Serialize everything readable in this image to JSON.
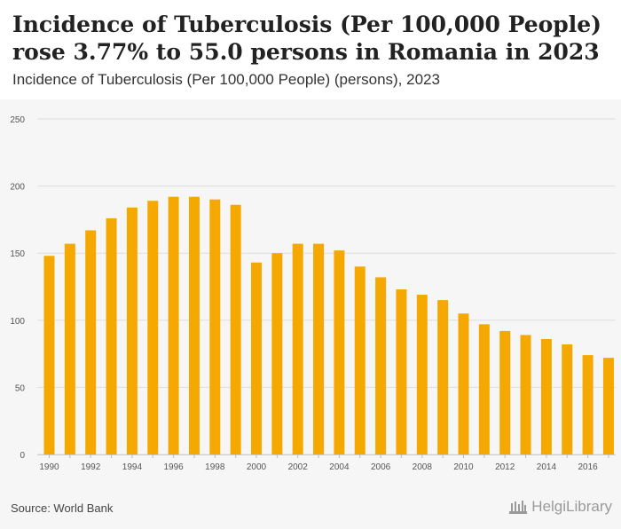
{
  "header": {
    "title": "Incidence of Tuberculosis (Per 100,000 People) rose 3.77% to 55.0 persons in Romania in 2023",
    "subtitle": "Incidence of Tuberculosis (Per 100,000 People) (persons), 2023"
  },
  "footer": {
    "source": "Source: World Bank",
    "logo_text": "HelgiLibrary"
  },
  "colors": {
    "bar": "#f5a800",
    "grid": "#dddddd",
    "background": "#f6f6f6"
  },
  "chart_data": {
    "type": "bar",
    "title": "Incidence of Tuberculosis (Per 100,000 People) rose 3.77% to 55.0 persons in Romania in 2023",
    "subtitle": "Incidence of Tuberculosis (Per 100,000 People) (persons), 2023",
    "xlabel": "",
    "ylabel": "",
    "ylim": [
      0,
      250
    ],
    "yticks": [
      0,
      50,
      100,
      150,
      200,
      250
    ],
    "grid": true,
    "legend": "none",
    "categories": [
      "1990",
      "1991",
      "1992",
      "1993",
      "1994",
      "1995",
      "1996",
      "1997",
      "1998",
      "1999",
      "2000",
      "2001",
      "2002",
      "2003",
      "2004",
      "2005",
      "2006",
      "2007",
      "2008",
      "2009",
      "2010",
      "2011",
      "2012",
      "2013",
      "2014",
      "2015",
      "2016",
      "2017"
    ],
    "xtick_labels": [
      "1990",
      "1992",
      "1994",
      "1996",
      "1998",
      "2000",
      "2002",
      "2004",
      "2006",
      "2008",
      "2010",
      "2012",
      "2014",
      "2016"
    ],
    "values": [
      148,
      157,
      167,
      176,
      184,
      189,
      192,
      192,
      190,
      186,
      143,
      150,
      157,
      157,
      152,
      140,
      132,
      123,
      119,
      115,
      105,
      97,
      92,
      89,
      86,
      82,
      74,
      72
    ]
  }
}
